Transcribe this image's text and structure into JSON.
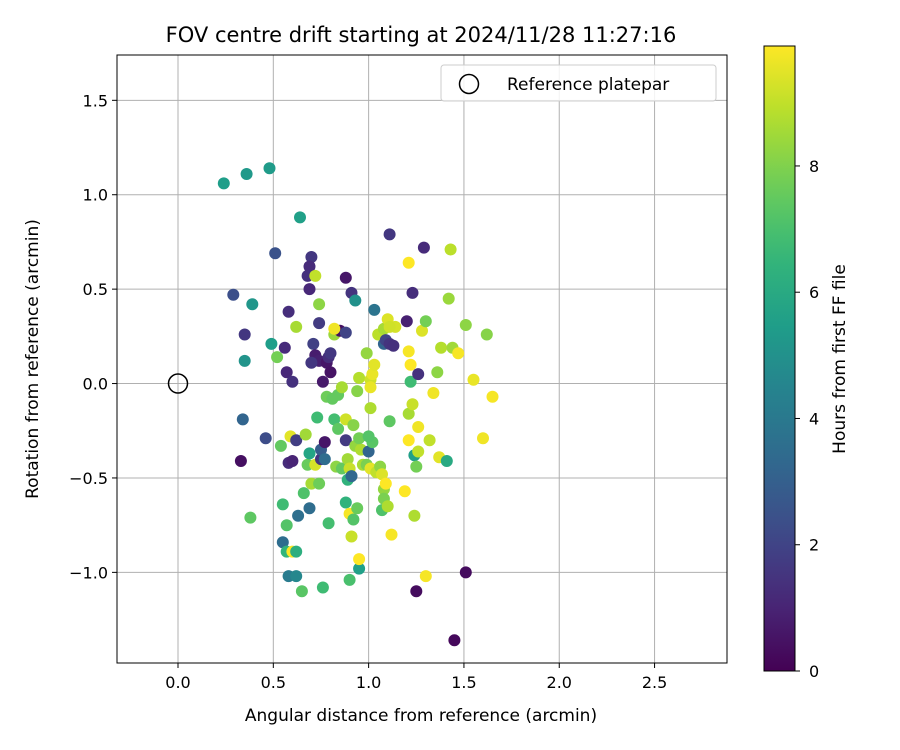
{
  "chart_data": {
    "type": "scatter",
    "title": "FOV centre drift starting at 2024/11/28 11:27:16",
    "xlabel": "Angular distance from reference (arcmin)",
    "ylabel": "Rotation from reference (arcmin)",
    "xlim": [
      -0.32,
      2.88
    ],
    "ylim": [
      -1.48,
      1.74
    ],
    "x_ticks": [
      0.0,
      0.5,
      1.0,
      1.5,
      2.0,
      2.5
    ],
    "x_tick_labels": [
      "0.0",
      "0.5",
      "1.0",
      "1.5",
      "2.0",
      "2.5"
    ],
    "y_ticks": [
      -1.0,
      -0.5,
      0.0,
      0.5,
      1.0,
      1.5
    ],
    "y_tick_labels": [
      "−1.0",
      "−0.5",
      "0.0",
      "0.5",
      "1.0",
      "1.5"
    ],
    "grid": true,
    "legend": {
      "placement": "top-right",
      "entries": [
        "Reference platepar"
      ]
    },
    "reference_point": {
      "x": 0.0,
      "y": 0.0
    },
    "colorbar": {
      "label": "Hours from first FF file",
      "colormap": "viridis",
      "range": [
        0,
        9.9
      ],
      "ticks": [
        0,
        2,
        4,
        6,
        8
      ],
      "tick_labels": [
        "0",
        "2",
        "4",
        "6",
        "8"
      ]
    },
    "series": [
      {
        "fields": [
          "x",
          "y",
          "hours"
        ],
        "points": [
          [
            0.24,
            1.06,
            5.5
          ],
          [
            0.36,
            1.11,
            5.3
          ],
          [
            0.48,
            1.14,
            5.4
          ],
          [
            0.64,
            0.88,
            5.6
          ],
          [
            0.51,
            0.69,
            2.5
          ],
          [
            0.29,
            0.47,
            2.4
          ],
          [
            0.39,
            0.42,
            5.2
          ],
          [
            0.35,
            0.26,
            1.6
          ],
          [
            0.35,
            0.12,
            5.1
          ],
          [
            0.49,
            0.21,
            5.5
          ],
          [
            0.52,
            0.14,
            7.8
          ],
          [
            0.56,
            0.19,
            1.2
          ],
          [
            0.58,
            0.38,
            1.3
          ],
          [
            0.62,
            0.3,
            8.6
          ],
          [
            0.57,
            0.06,
            1.1
          ],
          [
            0.6,
            0.01,
            1.4
          ],
          [
            0.34,
            -0.19,
            3.2
          ],
          [
            0.33,
            -0.41,
            0.4
          ],
          [
            0.46,
            -0.29,
            2.3
          ],
          [
            0.54,
            -0.33,
            7.5
          ],
          [
            0.38,
            -0.71,
            7.4
          ],
          [
            0.58,
            -0.42,
            1.2
          ],
          [
            0.6,
            -0.41,
            1.0
          ],
          [
            0.59,
            -0.28,
            9.5
          ],
          [
            0.62,
            -0.3,
            1.8
          ],
          [
            0.63,
            -0.7,
            3.6
          ],
          [
            0.55,
            -0.64,
            6.8
          ],
          [
            0.57,
            -0.75,
            7.2
          ],
          [
            0.55,
            -0.84,
            3.5
          ],
          [
            0.57,
            -0.89,
            6.5
          ],
          [
            0.6,
            -0.89,
            9.9
          ],
          [
            0.62,
            -0.89,
            6.2
          ],
          [
            0.58,
            -1.02,
            4.1
          ],
          [
            0.62,
            -1.02,
            4.6
          ],
          [
            0.65,
            -1.1,
            7.3
          ],
          [
            0.69,
            -0.66,
            3.5
          ],
          [
            0.66,
            -0.58,
            7.1
          ],
          [
            0.7,
            -0.53,
            8.6
          ],
          [
            0.68,
            -0.43,
            7.6
          ],
          [
            0.67,
            -0.27,
            8.5
          ],
          [
            0.69,
            -0.37,
            5.8
          ],
          [
            0.72,
            -0.43,
            9.3
          ],
          [
            0.73,
            -0.18,
            6.8
          ],
          [
            0.75,
            -0.4,
            1.5
          ],
          [
            0.7,
            0.67,
            1.6
          ],
          [
            0.69,
            0.62,
            1.2
          ],
          [
            0.68,
            0.57,
            1.4
          ],
          [
            0.72,
            0.57,
            9.0
          ],
          [
            0.69,
            0.5,
            1.1
          ],
          [
            0.74,
            0.42,
            8.2
          ],
          [
            0.74,
            0.32,
            1.7
          ],
          [
            0.71,
            0.21,
            1.9
          ],
          [
            0.72,
            0.15,
            0.8
          ],
          [
            0.74,
            0.12,
            0.9
          ],
          [
            0.7,
            0.11,
            1.6
          ],
          [
            0.78,
            0.11,
            0.6
          ],
          [
            0.8,
            0.06,
            0.5
          ],
          [
            0.76,
            0.01,
            0.7
          ],
          [
            0.75,
            -0.35,
            2.9
          ],
          [
            0.77,
            -0.4,
            3.5
          ],
          [
            0.74,
            -0.53,
            7.7
          ],
          [
            0.76,
            -1.08,
            6.8
          ],
          [
            0.79,
            -0.74,
            6.9
          ],
          [
            0.77,
            -0.31,
            0.6
          ],
          [
            0.78,
            -0.07,
            7.7
          ],
          [
            0.81,
            -0.08,
            7.5
          ],
          [
            0.79,
            0.14,
            1.3
          ],
          [
            0.8,
            0.16,
            1.6
          ],
          [
            0.82,
            0.26,
            8.4
          ],
          [
            0.85,
            0.28,
            0.4
          ],
          [
            0.82,
            0.29,
            9.7
          ],
          [
            0.88,
            0.27,
            2.0
          ],
          [
            0.82,
            -0.19,
            6.9
          ],
          [
            0.84,
            -0.24,
            7.4
          ],
          [
            0.83,
            -0.44,
            8.2
          ],
          [
            0.86,
            -0.45,
            7.5
          ],
          [
            0.84,
            -0.06,
            7.5
          ],
          [
            0.86,
            -0.02,
            8.6
          ],
          [
            0.88,
            -0.19,
            9.2
          ],
          [
            0.88,
            -0.3,
            1.7
          ],
          [
            0.88,
            0.56,
            0.6
          ],
          [
            0.91,
            0.48,
            1.5
          ],
          [
            0.93,
            0.44,
            5.0
          ],
          [
            0.89,
            -0.4,
            8.5
          ],
          [
            0.9,
            -0.45,
            9.1
          ],
          [
            0.89,
            -0.51,
            6.4
          ],
          [
            0.91,
            -0.49,
            3.3
          ],
          [
            0.88,
            -0.63,
            6.4
          ],
          [
            0.9,
            -0.69,
            9.8
          ],
          [
            0.91,
            -0.81,
            9.1
          ],
          [
            0.92,
            -0.72,
            7.2
          ],
          [
            0.9,
            -1.04,
            7.0
          ],
          [
            0.95,
            -0.98,
            5.6
          ],
          [
            0.95,
            -0.93,
            9.9
          ],
          [
            0.94,
            -0.66,
            7.6
          ],
          [
            0.93,
            -0.33,
            8.3
          ],
          [
            0.96,
            -0.35,
            8.7
          ],
          [
            0.95,
            -0.29,
            7.8
          ],
          [
            0.92,
            -0.22,
            8.1
          ],
          [
            0.94,
            -0.04,
            8.1
          ],
          [
            0.95,
            0.03,
            8.8
          ],
          [
            0.97,
            -0.43,
            8.6
          ],
          [
            0.99,
            0.16,
            8.3
          ],
          [
            1.01,
            0.02,
            9.2
          ],
          [
            1.02,
            0.05,
            9.6
          ],
          [
            1.03,
            0.1,
            9.5
          ],
          [
            1.01,
            -0.02,
            9.6
          ],
          [
            1.01,
            -0.13,
            8.7
          ],
          [
            1.0,
            -0.36,
            3.2
          ],
          [
            1.02,
            -0.31,
            7.3
          ],
          [
            1.0,
            -0.28,
            7.2
          ],
          [
            0.99,
            -0.43,
            7.9
          ],
          [
            1.01,
            -0.45,
            9.5
          ],
          [
            1.04,
            -0.47,
            9.0
          ],
          [
            1.06,
            -0.44,
            8.2
          ],
          [
            1.07,
            -0.48,
            9.4
          ],
          [
            1.08,
            -0.56,
            8.3
          ],
          [
            1.09,
            -0.53,
            9.9
          ],
          [
            1.08,
            -0.61,
            7.9
          ],
          [
            1.07,
            -0.67,
            7.1
          ],
          [
            1.1,
            -0.65,
            8.7
          ],
          [
            1.12,
            -0.8,
            9.8
          ],
          [
            1.11,
            -0.2,
            7.4
          ],
          [
            1.08,
            0.21,
            3.2
          ],
          [
            1.05,
            0.26,
            8.9
          ],
          [
            1.08,
            0.29,
            8.6
          ],
          [
            1.1,
            0.34,
            9.4
          ],
          [
            1.09,
            0.23,
            2.0
          ],
          [
            1.11,
            0.21,
            1.5
          ],
          [
            1.13,
            0.2,
            1.4
          ],
          [
            1.14,
            0.3,
            9.3
          ],
          [
            1.03,
            0.39,
            3.8
          ],
          [
            1.11,
            0.79,
            1.6
          ],
          [
            1.11,
            0.3,
            9.2
          ],
          [
            1.2,
            0.33,
            0.9
          ],
          [
            1.21,
            0.17,
            9.8
          ],
          [
            1.22,
            0.1,
            9.9
          ],
          [
            1.21,
            0.64,
            9.9
          ],
          [
            1.23,
            0.48,
            1.3
          ],
          [
            1.22,
            0.01,
            6.8
          ],
          [
            1.21,
            -0.16,
            8.6
          ],
          [
            1.23,
            -0.11,
            9.1
          ],
          [
            1.21,
            -0.3,
            9.9
          ],
          [
            1.24,
            -0.38,
            5.6
          ],
          [
            1.26,
            -0.36,
            9.0
          ],
          [
            1.25,
            -0.44,
            7.8
          ],
          [
            1.26,
            -0.23,
            9.7
          ],
          [
            1.19,
            -0.57,
            9.9
          ],
          [
            1.24,
            -0.7,
            8.7
          ],
          [
            1.25,
            -1.1,
            0.3
          ],
          [
            1.3,
            -1.02,
            9.8
          ],
          [
            1.26,
            0.05,
            1.4
          ],
          [
            1.28,
            0.28,
            9.4
          ],
          [
            1.3,
            0.33,
            7.8
          ],
          [
            1.29,
            0.72,
            1.2
          ],
          [
            1.32,
            -0.3,
            9.0
          ],
          [
            1.34,
            -0.05,
            9.7
          ],
          [
            1.36,
            0.06,
            8.2
          ],
          [
            1.37,
            -0.39,
            9.5
          ],
          [
            1.38,
            0.19,
            8.8
          ],
          [
            1.41,
            -0.41,
            6.0
          ],
          [
            1.42,
            0.45,
            8.4
          ],
          [
            1.43,
            0.71,
            8.9
          ],
          [
            1.44,
            0.19,
            8.5
          ],
          [
            1.47,
            0.16,
            9.8
          ],
          [
            1.51,
            0.31,
            8.2
          ],
          [
            1.45,
            -1.36,
            0.2
          ],
          [
            1.51,
            -1.0,
            0.3
          ],
          [
            1.55,
            0.02,
            9.6
          ],
          [
            1.6,
            -0.29,
            9.7
          ],
          [
            1.62,
            0.26,
            8.1
          ],
          [
            1.65,
            -0.07,
            9.8
          ]
        ]
      }
    ]
  }
}
